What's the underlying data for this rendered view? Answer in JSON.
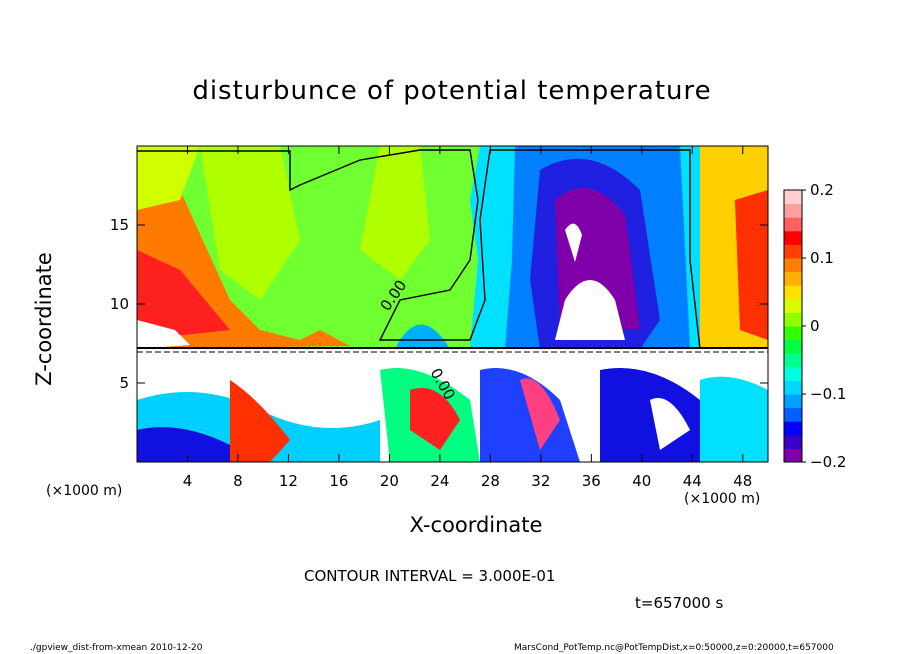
{
  "chart_data": {
    "type": "heatmap",
    "title": "disturbunce of potential temperature",
    "xlabel": "X-coordinate",
    "ylabel": "Z-coordinate",
    "x_unit": "(×1000 m)",
    "z_unit": "(×1000 m)",
    "xlim": [
      0,
      50
    ],
    "ylim": [
      0,
      20
    ],
    "x_ticks": [
      4,
      8,
      12,
      16,
      20,
      24,
      28,
      32,
      36,
      40,
      44,
      48
    ],
    "y_ticks": [
      5,
      10,
      15
    ],
    "colorbar": {
      "ticks": [
        0.2,
        0.1,
        0,
        -0.1,
        -0.2
      ],
      "tick_labels": [
        "0.2",
        "0.1",
        "0",
        "−0.1",
        "−0.2"
      ],
      "range": [
        -0.2,
        0.2
      ],
      "colors": [
        "#7f00a8",
        "#3c00c8",
        "#0000ff",
        "#0060ff",
        "#00a0ff",
        "#00d8ff",
        "#00ffe0",
        "#00ff90",
        "#00ff40",
        "#30ff00",
        "#90ff00",
        "#d8ff00",
        "#ffe000",
        "#ffb000",
        "#ff8000",
        "#ff4000",
        "#ff0000",
        "#ff6060",
        "#ffa0a0",
        "#ffd0d0"
      ]
    },
    "contour_labels": [
      "0.00",
      "0.00"
    ]
  },
  "annotations": {
    "contour_interval": "CONTOUR INTERVAL = 3.000E-01",
    "time": "t=657000 s"
  },
  "footer": {
    "left": "./gpview_dist-from-xmean  2010-12-20",
    "right": "MarsCond_PotTemp.nc@PotTempDist,x=0:50000,z=0:20000,t=657000"
  }
}
